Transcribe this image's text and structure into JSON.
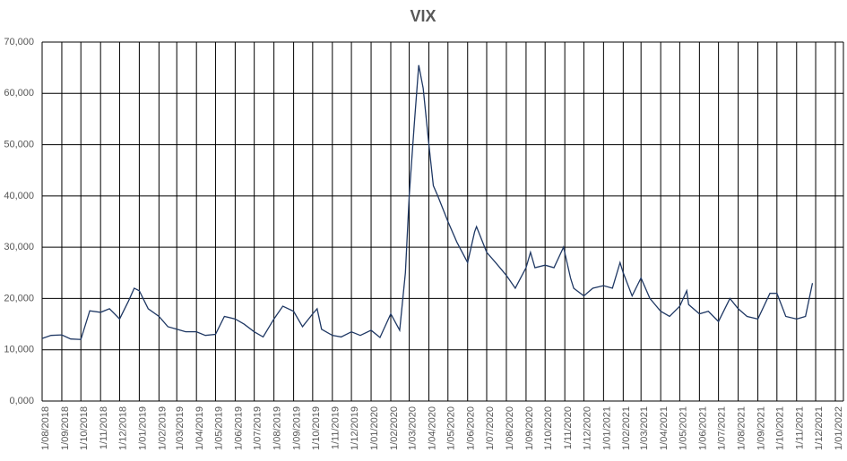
{
  "chart_data": {
    "type": "line",
    "title": "VIX",
    "grid": true,
    "color": "#1f3864",
    "x": [
      "2018-08-01",
      "2018-08-15",
      "2018-09-01",
      "2018-09-15",
      "2018-10-01",
      "2018-10-15",
      "2018-11-01",
      "2018-11-15",
      "2018-12-01",
      "2018-12-15",
      "2018-12-24",
      "2019-01-01",
      "2019-01-15",
      "2019-02-01",
      "2019-02-15",
      "2019-03-01",
      "2019-03-15",
      "2019-04-01",
      "2019-04-15",
      "2019-05-01",
      "2019-05-15",
      "2019-06-01",
      "2019-06-15",
      "2019-07-01",
      "2019-07-15",
      "2019-08-01",
      "2019-08-15",
      "2019-09-01",
      "2019-09-15",
      "2019-10-01",
      "2019-10-08",
      "2019-10-15",
      "2019-11-01",
      "2019-11-15",
      "2019-12-01",
      "2019-12-15",
      "2020-01-01",
      "2020-01-15",
      "2020-02-01",
      "2020-02-15",
      "2020-02-24",
      "2020-03-01",
      "2020-03-09",
      "2020-03-16",
      "2020-03-23",
      "2020-04-01",
      "2020-04-08",
      "2020-04-15",
      "2020-05-01",
      "2020-05-15",
      "2020-06-01",
      "2020-06-12",
      "2020-06-15",
      "2020-07-01",
      "2020-07-15",
      "2020-08-01",
      "2020-08-15",
      "2020-09-01",
      "2020-09-08",
      "2020-09-15",
      "2020-10-01",
      "2020-10-15",
      "2020-10-30",
      "2020-11-10",
      "2020-11-15",
      "2020-12-01",
      "2020-12-15",
      "2021-01-01",
      "2021-01-15",
      "2021-01-27",
      "2021-02-01",
      "2021-02-15",
      "2021-03-01",
      "2021-03-15",
      "2021-04-01",
      "2021-04-15",
      "2021-05-01",
      "2021-05-12",
      "2021-05-15",
      "2021-06-01",
      "2021-06-15",
      "2021-07-01",
      "2021-07-19",
      "2021-08-01",
      "2021-08-15",
      "2021-09-01",
      "2021-09-20",
      "2021-10-01",
      "2021-10-15",
      "2021-11-01",
      "2021-11-15",
      "2021-11-26"
    ],
    "values": [
      12.2,
      12.8,
      12.9,
      12.1,
      12.0,
      17.6,
      17.3,
      18.0,
      16.0,
      19.5,
      22.0,
      21.5,
      18.0,
      16.5,
      14.5,
      14.0,
      13.5,
      13.5,
      12.8,
      13.0,
      16.5,
      16.0,
      15.0,
      13.5,
      12.5,
      16.0,
      18.5,
      17.5,
      14.5,
      17.0,
      18.0,
      14.0,
      12.8,
      12.5,
      13.5,
      12.8,
      13.8,
      12.4,
      17.0,
      13.8,
      25.0,
      40.0,
      54.0,
      65.5,
      61.0,
      50.0,
      42.0,
      40.0,
      35.0,
      31.0,
      27.0,
      33.0,
      34.0,
      29.0,
      27.0,
      24.5,
      22.0,
      26.0,
      29.0,
      26.0,
      26.5,
      26.0,
      30.0,
      24.0,
      22.0,
      20.5,
      22.0,
      22.5,
      22.0,
      27.0,
      25.0,
      20.5,
      24.0,
      20.0,
      17.5,
      16.5,
      18.5,
      21.5,
      18.8,
      17.0,
      17.5,
      15.5,
      20.0,
      18.0,
      16.5,
      16.0,
      21.0,
      21.0,
      16.5,
      16.0,
      16.5,
      23.0
    ],
    "ylim": [
      0,
      70
    ],
    "yticks": [
      {
        "value": 0,
        "label": "0,000"
      },
      {
        "value": 10,
        "label": "10,000"
      },
      {
        "value": 20,
        "label": "20,000"
      },
      {
        "value": 30,
        "label": "30,000"
      },
      {
        "value": 40,
        "label": "40,000"
      },
      {
        "value": 50,
        "label": "50,000"
      },
      {
        "value": 60,
        "label": "60,000"
      },
      {
        "value": 70,
        "label": "70,000"
      }
    ],
    "xlim": [
      "2018-08-01",
      "2022-01-01"
    ],
    "xticks": [
      {
        "value": "2018-08-01",
        "label": "1/08/2018"
      },
      {
        "value": "2018-09-01",
        "label": "1/09/2018"
      },
      {
        "value": "2018-10-01",
        "label": "1/10/2018"
      },
      {
        "value": "2018-11-01",
        "label": "1/11/2018"
      },
      {
        "value": "2018-12-01",
        "label": "1/12/2018"
      },
      {
        "value": "2019-01-01",
        "label": "1/01/2019"
      },
      {
        "value": "2019-02-01",
        "label": "1/02/2019"
      },
      {
        "value": "2019-03-01",
        "label": "1/03/2019"
      },
      {
        "value": "2019-04-01",
        "label": "1/04/2019"
      },
      {
        "value": "2019-05-01",
        "label": "1/05/2019"
      },
      {
        "value": "2019-06-01",
        "label": "1/06/2019"
      },
      {
        "value": "2019-07-01",
        "label": "1/07/2019"
      },
      {
        "value": "2019-08-01",
        "label": "1/08/2019"
      },
      {
        "value": "2019-09-01",
        "label": "1/09/2019"
      },
      {
        "value": "2019-10-01",
        "label": "1/10/2019"
      },
      {
        "value": "2019-11-01",
        "label": "1/11/2019"
      },
      {
        "value": "2019-12-01",
        "label": "1/12/2019"
      },
      {
        "value": "2020-01-01",
        "label": "1/01/2020"
      },
      {
        "value": "2020-02-01",
        "label": "1/02/2020"
      },
      {
        "value": "2020-03-01",
        "label": "1/03/2020"
      },
      {
        "value": "2020-04-01",
        "label": "1/04/2020"
      },
      {
        "value": "2020-05-01",
        "label": "1/05/2020"
      },
      {
        "value": "2020-06-01",
        "label": "1/06/2020"
      },
      {
        "value": "2020-07-01",
        "label": "1/07/2020"
      },
      {
        "value": "2020-08-01",
        "label": "1/08/2020"
      },
      {
        "value": "2020-09-01",
        "label": "1/09/2020"
      },
      {
        "value": "2020-10-01",
        "label": "1/10/2020"
      },
      {
        "value": "2020-11-01",
        "label": "1/11/2020"
      },
      {
        "value": "2020-12-01",
        "label": "1/12/2020"
      },
      {
        "value": "2021-01-01",
        "label": "1/01/2021"
      },
      {
        "value": "2021-02-01",
        "label": "1/02/2021"
      },
      {
        "value": "2021-03-01",
        "label": "1/03/2021"
      },
      {
        "value": "2021-04-01",
        "label": "1/04/2021"
      },
      {
        "value": "2021-05-01",
        "label": "1/05/2021"
      },
      {
        "value": "2021-06-01",
        "label": "1/06/2021"
      },
      {
        "value": "2021-07-01",
        "label": "1/07/2021"
      },
      {
        "value": "2021-08-01",
        "label": "1/08/2021"
      },
      {
        "value": "2021-09-01",
        "label": "1/09/2021"
      },
      {
        "value": "2021-10-01",
        "label": "1/10/2021"
      },
      {
        "value": "2021-11-01",
        "label": "1/11/2021"
      },
      {
        "value": "2021-12-01",
        "label": "1/12/2021"
      },
      {
        "value": "2022-01-01",
        "label": "1/01/2022"
      }
    ]
  }
}
